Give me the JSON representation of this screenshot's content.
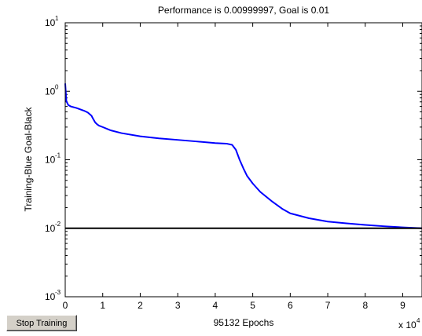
{
  "stop_button": {
    "label": "Stop Training"
  },
  "chart_data": {
    "type": "line",
    "title": "Performance is 0.00999997, Goal is 0.01",
    "xlabel": "95132 Epochs",
    "ylabel": "Training-Blue  Goal-Black",
    "x_multiplier_label": "x 10",
    "x_multiplier_exponent": "4",
    "xlim": [
      0,
      9.5132
    ],
    "ylim": [
      0.001,
      10
    ],
    "y_scale": "log",
    "x_ticks": [
      0,
      1,
      2,
      3,
      4,
      5,
      6,
      7,
      8,
      9
    ],
    "x_tick_labels": [
      "0",
      "1",
      "2",
      "3",
      "4",
      "5",
      "6",
      "7",
      "8",
      "9"
    ],
    "y_ticks": [
      0.001,
      0.01,
      0.1,
      1,
      10
    ],
    "y_tick_base": "10",
    "y_tick_exponents": [
      "-3",
      "-2",
      "-1",
      "0",
      "1"
    ],
    "grid": false,
    "series": [
      {
        "color": "#0000ff",
        "x": [
          0,
          0.03,
          0.08,
          0.15,
          0.3,
          0.5,
          0.6,
          0.7,
          0.75,
          0.8,
          0.85,
          0.9,
          1.0,
          1.2,
          1.5,
          2.0,
          2.5,
          3.0,
          3.5,
          4.0,
          4.3,
          4.45,
          4.55,
          4.65,
          4.75,
          4.85,
          5.0,
          5.2,
          5.5,
          5.8,
          6.0,
          6.5,
          7.0,
          7.5,
          8.0,
          8.5,
          9.0,
          9.5132
        ],
        "y": [
          1.3,
          0.72,
          0.63,
          0.6,
          0.57,
          0.52,
          0.49,
          0.44,
          0.39,
          0.35,
          0.33,
          0.315,
          0.3,
          0.27,
          0.245,
          0.22,
          0.205,
          0.195,
          0.185,
          0.175,
          0.172,
          0.165,
          0.14,
          0.1,
          0.075,
          0.058,
          0.045,
          0.034,
          0.025,
          0.019,
          0.0165,
          0.014,
          0.0125,
          0.0118,
          0.0112,
          0.0107,
          0.0103,
          0.00999997
        ]
      },
      {
        "color": "#000000",
        "x": [
          0,
          9.5132
        ],
        "y": [
          0.01,
          0.01
        ]
      }
    ]
  }
}
